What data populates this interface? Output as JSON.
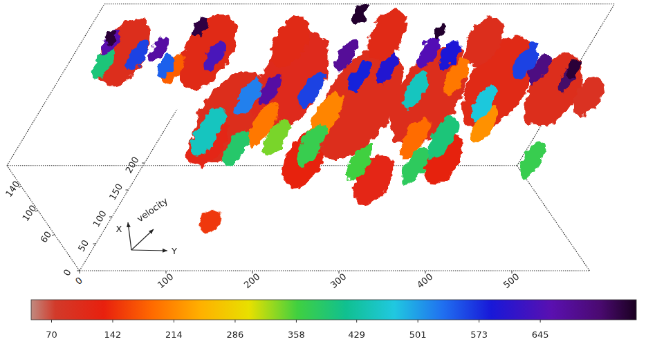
{
  "chart_data": {
    "type": "volume",
    "x_label": "X",
    "y_label": "Y",
    "z_label": "velocity",
    "xlim": [
      0,
      300
    ],
    "xticks": [
      0,
      50,
      100,
      150,
      200
    ],
    "ylim": [
      0,
      590
    ],
    "yticks": [
      0,
      100,
      200,
      300,
      400,
      500
    ],
    "zlim": [
      0,
      175
    ],
    "zticks": [
      60,
      100,
      140
    ],
    "colorbar": {
      "range": [
        46,
        758
      ],
      "ticks": [
        70,
        142,
        214,
        286,
        358,
        429,
        501,
        573,
        645
      ]
    },
    "clumps": [
      {
        "x": 228,
        "y": 43,
        "velocity": 160,
        "value": 100,
        "size": 121
      },
      {
        "x": 228,
        "y": 139,
        "velocity": 160,
        "value": 110,
        "size": 132
      },
      {
        "x": 173,
        "y": 155,
        "velocity": 100,
        "value": 100,
        "size": 165
      },
      {
        "x": 128,
        "y": 148,
        "velocity": 100,
        "value": 120,
        "size": 88
      },
      {
        "x": 237,
        "y": 203,
        "velocity": 100,
        "value": 105,
        "size": 176
      },
      {
        "x": 96,
        "y": 272,
        "velocity": 100,
        "value": 130,
        "size": 99
      },
      {
        "x": 199,
        "y": 297,
        "velocity": 100,
        "value": 100,
        "size": 198
      },
      {
        "x": 58,
        "y": 366,
        "velocity": 100,
        "value": 120,
        "size": 88
      },
      {
        "x": 212,
        "y": 372,
        "velocity": 100,
        "value": 100,
        "size": 176
      },
      {
        "x": 96,
        "y": 432,
        "velocity": 100,
        "value": 125,
        "size": 88
      },
      {
        "x": 237,
        "y": 443,
        "velocity": 100,
        "value": 110,
        "size": 165
      },
      {
        "x": 224,
        "y": 512,
        "velocity": 100,
        "value": 100,
        "size": 132
      },
      {
        "x": 212,
        "y": 556,
        "velocity": 100,
        "value": 95,
        "size": 66
      },
      {
        "x": 260,
        "y": 335,
        "velocity": 160,
        "value": 110,
        "size": 88
      },
      {
        "x": 247,
        "y": 452,
        "velocity": 160,
        "value": 100,
        "size": 88
      },
      {
        "x": 247,
        "y": 228,
        "velocity": 160,
        "value": 110,
        "size": 88
      },
      {
        "x": 160,
        "y": 200,
        "velocity": 100,
        "value": 200,
        "size": 77
      },
      {
        "x": 173,
        "y": 267,
        "velocity": 100,
        "value": 210,
        "size": 88
      },
      {
        "x": 135,
        "y": 385,
        "velocity": 100,
        "value": 190,
        "size": 77
      },
      {
        "x": 160,
        "y": 456,
        "velocity": 100,
        "value": 220,
        "size": 66
      },
      {
        "x": 196,
        "y": 111,
        "velocity": 160,
        "value": 180,
        "size": 55
      },
      {
        "x": 250,
        "y": 390,
        "velocity": 100,
        "value": 200,
        "size": 66
      },
      {
        "x": 209,
        "y": 26,
        "velocity": 160,
        "value": 400,
        "size": 55
      },
      {
        "x": 147,
        "y": 141,
        "velocity": 100,
        "value": 450,
        "size": 88
      },
      {
        "x": 115,
        "y": 185,
        "velocity": 100,
        "value": 390,
        "size": 66
      },
      {
        "x": 122,
        "y": 270,
        "velocity": 100,
        "value": 370,
        "size": 77
      },
      {
        "x": 90,
        "y": 338,
        "velocity": 100,
        "value": 360,
        "size": 66
      },
      {
        "x": 83,
        "y": 405,
        "velocity": 100,
        "value": 380,
        "size": 66
      },
      {
        "x": 135,
        "y": 417,
        "velocity": 100,
        "value": 400,
        "size": 77
      },
      {
        "x": 96,
        "y": 536,
        "velocity": 100,
        "value": 370,
        "size": 66
      },
      {
        "x": 224,
        "y": 352,
        "velocity": 100,
        "value": 450,
        "size": 66
      },
      {
        "x": 199,
        "y": 441,
        "velocity": 100,
        "value": 470,
        "size": 66
      },
      {
        "x": 135,
        "y": 225,
        "velocity": 100,
        "value": 340,
        "size": 66
      },
      {
        "x": 222,
        "y": 61,
        "velocity": 160,
        "value": 560,
        "size": 55
      },
      {
        "x": 224,
        "y": 232,
        "velocity": 100,
        "value": 560,
        "size": 66
      },
      {
        "x": 250,
        "y": 278,
        "velocity": 100,
        "value": 580,
        "size": 55
      },
      {
        "x": 196,
        "y": 359,
        "velocity": 160,
        "value": 600,
        "size": 55
      },
      {
        "x": 222,
        "y": 421,
        "velocity": 160,
        "value": 590,
        "size": 55
      },
      {
        "x": 209,
        "y": 514,
        "velocity": 160,
        "value": 560,
        "size": 66
      },
      {
        "x": 202,
        "y": 101,
        "velocity": 160,
        "value": 540,
        "size": 44
      },
      {
        "x": 212,
        "y": 164,
        "velocity": 100,
        "value": 520,
        "size": 66
      },
      {
        "x": 247,
        "y": 20,
        "velocity": 160,
        "value": 660,
        "size": 44
      },
      {
        "x": 234,
        "y": 81,
        "velocity": 160,
        "value": 670,
        "size": 44
      },
      {
        "x": 221,
        "y": 150,
        "velocity": 160,
        "value": 640,
        "size": 55
      },
      {
        "x": 224,
        "y": 184,
        "velocity": 100,
        "value": 670,
        "size": 55
      },
      {
        "x": 221,
        "y": 302,
        "velocity": 160,
        "value": 680,
        "size": 55
      },
      {
        "x": 228,
        "y": 395,
        "velocity": 160,
        "value": 650,
        "size": 55
      },
      {
        "x": 196,
        "y": 535,
        "velocity": 160,
        "value": 700,
        "size": 55
      },
      {
        "x": 244,
        "y": 520,
        "velocity": 100,
        "value": 720,
        "size": 44
      },
      {
        "x": 254,
        "y": 17,
        "velocity": 160,
        "value": 745,
        "size": 27
      },
      {
        "x": 273,
        "y": 114,
        "velocity": 160,
        "value": 740,
        "size": 33
      },
      {
        "x": 287,
        "y": 298,
        "velocity": 170,
        "value": 750,
        "size": 38
      },
      {
        "x": 266,
        "y": 393,
        "velocity": 160,
        "value": 750,
        "size": 27
      },
      {
        "x": 196,
        "y": 575,
        "velocity": 160,
        "value": 745,
        "size": 33
      },
      {
        "x": 25,
        "y": 171,
        "velocity": 60,
        "value": 150,
        "size": 44
      }
    ]
  }
}
